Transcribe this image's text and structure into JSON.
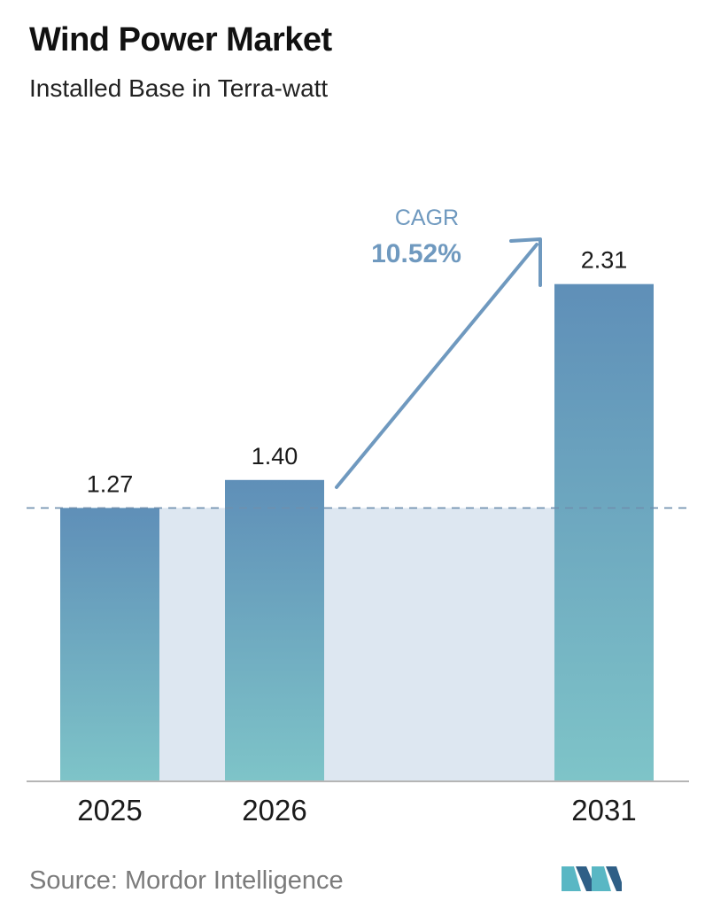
{
  "header": {
    "title": "Wind Power Market",
    "subtitle": "Installed Base in Terra-watt"
  },
  "footer": {
    "source": "Source:  Mordor Intelligence"
  },
  "colors": {
    "bar_top": "#5f8fb8",
    "bar_bottom": "#7ec4c8",
    "shade": "#dde7f1",
    "arrow": "#6f99bf",
    "dashed_line": "#6f8fae",
    "axis": "#b5b5b5",
    "logo_dark": "#2f5f86",
    "logo_light": "#59b7c4"
  },
  "chart_data": {
    "type": "bar",
    "categories": [
      "2025",
      "2026",
      "2031"
    ],
    "values": [
      1.27,
      1.4,
      2.31
    ],
    "data_labels": [
      "1.27",
      "1.40",
      "2.31"
    ],
    "title": "Wind Power Market",
    "subtitle": "Installed Base in Terra-watt",
    "xlabel": "",
    "ylabel": "",
    "grid": false,
    "reference_line": {
      "value": 1.27,
      "style": "dashed"
    },
    "annotation": {
      "label": "CAGR",
      "value": "10.52%"
    }
  }
}
